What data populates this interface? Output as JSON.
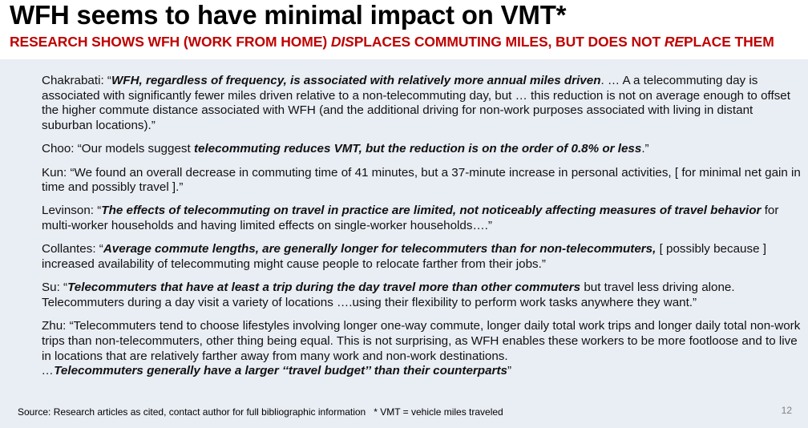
{
  "title": "WFH seems to have minimal impact on VMT*",
  "subtitle": {
    "a": "RESEARCH SHOWS WFH (WORK FROM HOME) ",
    "b": "DIS",
    "c": "PLACES COMMUTING MILES, BUT DOES NOT ",
    "d": "RE",
    "e": "PLACE THEM"
  },
  "quotes": {
    "chakrabati": {
      "author": "Chakrabati: “",
      "bold": "WFH, regardless of frequency, is associated with relatively more annual miles driven",
      "rest": ".  … A a telecommuting day is associated with significantly fewer miles driven relative to a non-telecommuting day, but … this reduction is not on average enough to offset the higher commute distance associated with WFH (and the additional driving for non-work purposes associated with living in distant suburban locations).”"
    },
    "choo": {
      "author": "Choo: “Our models suggest ",
      "bold": "telecommuting reduces VMT, but the reduction is on the order of 0.8% or less",
      "rest": ".”"
    },
    "kun": {
      "text": "Kun: “We found an overall decrease in commuting time of 41 minutes, but a 37-minute increase in personal activities, [ for minimal net gain in time and possibly travel ].”"
    },
    "levinson": {
      "author": "Levinson: “",
      "bold": "The effects of telecommuting on travel in practice are limited, not noticeably affecting measures of travel behavior",
      "rest": " for multi-worker households and having limited effects on single-worker households….”"
    },
    "collantes": {
      "author": "Collantes: “",
      "bold": "Average commute lengths, are generally longer for telecommuters than for non-telecommuters,",
      "rest": " [ possibly because ] increased availability of telecommuting might cause people to relocate farther from their jobs.”"
    },
    "su": {
      "author": "Su: “",
      "bold": "Telecommuters that have at least a trip during the day travel more than other commuters",
      "rest": " but travel less driving alone. Telecommuters during a day visit a variety of locations ….using their flexibility to perform work tasks anywhere they want.”"
    },
    "zhu": {
      "text": "Zhu: “Telecommuters tend to choose lifestyles involving longer one-way commute, longer daily total work trips and longer daily total non-work trips than non-telecommuters, other thing being equal. This is not surprising, as WFH enables these workers to be more footloose and to live in locations that are relatively farther away from many work and non-work destinations.",
      "lead": "…",
      "bold": "Telecommuters generally have a larger ‘‘travel budget’’ than their counterparts",
      "rest": "”"
    }
  },
  "source": "Source: Research articles as cited, contact author for full bibliographic information",
  "footnote": "* VMT = vehicle miles traveled",
  "page_number": "12"
}
